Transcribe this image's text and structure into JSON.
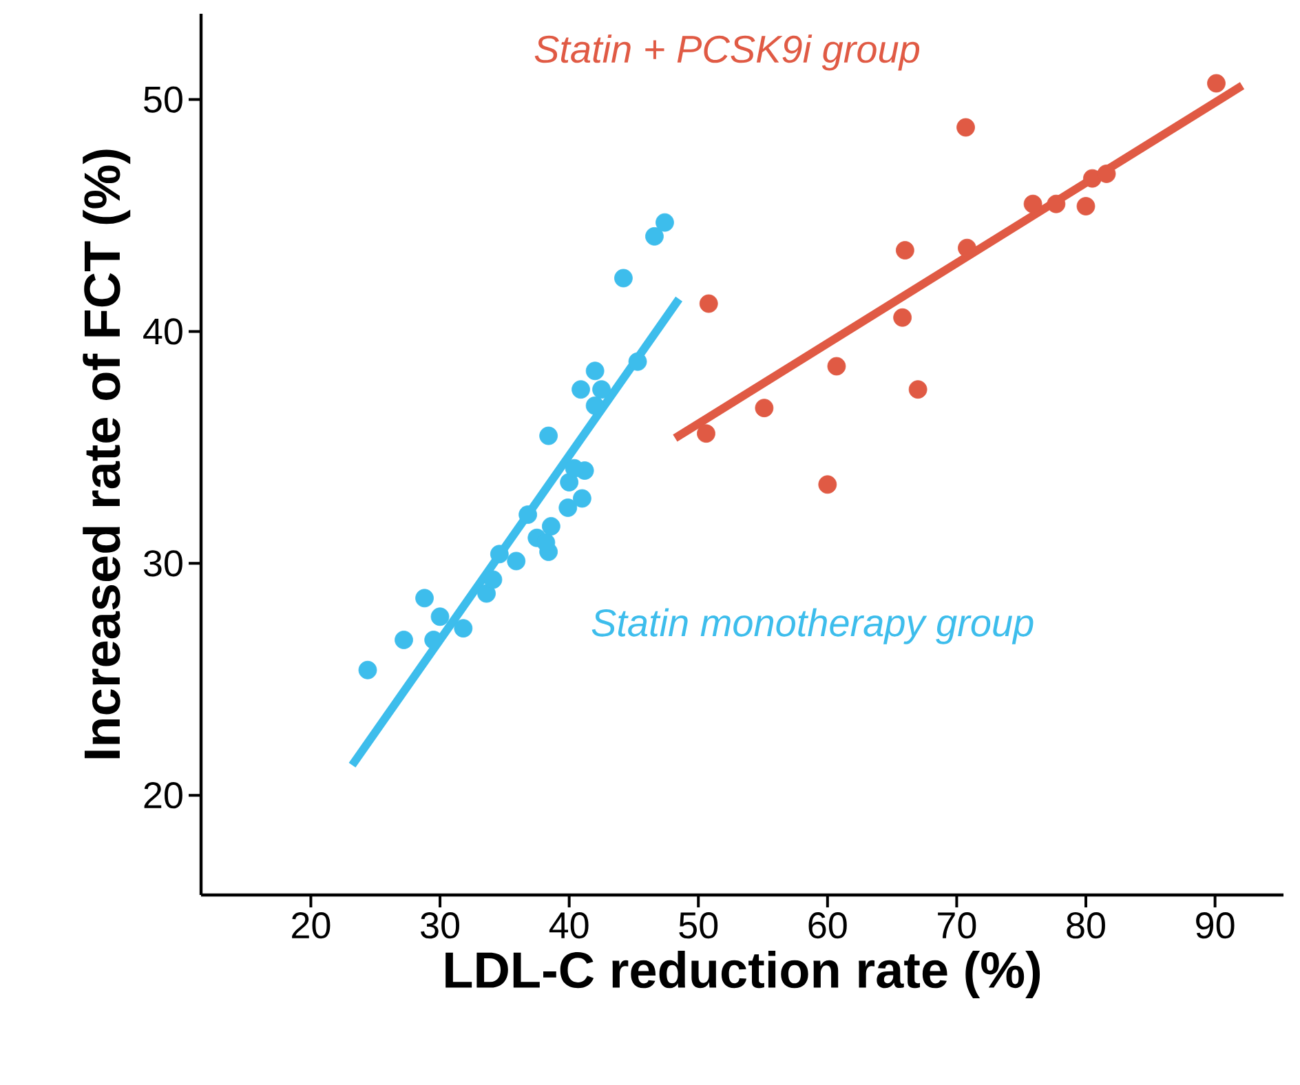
{
  "chart_data": {
    "type": "scatter",
    "xlabel": "LDL-C reduction rate (%)",
    "ylabel": "Increased rate of FCT (%)",
    "xlim": [
      11.5,
      95.3
    ],
    "ylim": [
      15.7,
      53.7
    ],
    "xticks": [
      20,
      30,
      40,
      50,
      60,
      70,
      80,
      90
    ],
    "yticks": [
      20,
      30,
      40,
      50
    ],
    "grid": false,
    "series": [
      {
        "name": "Statin monotherapy group",
        "marker": "circle",
        "color": "#3dbdec",
        "x": [
          24.4,
          27.2,
          28.8,
          30.0,
          29.5,
          31.8,
          33.6,
          34.1,
          34.6,
          35.9,
          36.8,
          37.5,
          38.6,
          38.4,
          38.2,
          39.9,
          41.0,
          40.0,
          41.2,
          40.4,
          38.4,
          40.9,
          42.0,
          42.5,
          42.0,
          45.3,
          44.2,
          46.6,
          47.4
        ],
        "values": [
          25.4,
          26.7,
          28.5,
          27.7,
          26.7,
          27.2,
          28.7,
          29.3,
          30.4,
          30.1,
          32.1,
          31.1,
          31.6,
          30.5,
          30.9,
          32.4,
          32.8,
          33.5,
          34.0,
          34.1,
          35.5,
          37.5,
          38.3,
          37.5,
          36.8,
          38.7,
          42.3,
          44.1,
          44.7
        ]
      },
      {
        "type": "line",
        "marker": "none",
        "color": "#3dbdec",
        "x": [
          23.2,
          48.5
        ],
        "values": [
          21.3,
          41.4
        ]
      },
      {
        "name": "Statin + PCSK9i group",
        "marker": "circle",
        "color": "#e05a44",
        "x": [
          90.1,
          70.7,
          80.5,
          81.6,
          75.9,
          77.7,
          80.0,
          66.0,
          70.8,
          50.8,
          65.8,
          60.7,
          67.0,
          55.1,
          50.6,
          60.0
        ],
        "values": [
          50.7,
          48.8,
          46.6,
          46.8,
          45.5,
          45.5,
          45.4,
          43.5,
          43.6,
          41.2,
          40.6,
          38.5,
          37.5,
          36.7,
          35.6,
          33.4
        ]
      },
      {
        "type": "line",
        "marker": "none",
        "color": "#e05a44",
        "x": [
          48.2,
          92.1
        ],
        "values": [
          35.4,
          50.6
        ]
      }
    ]
  }
}
